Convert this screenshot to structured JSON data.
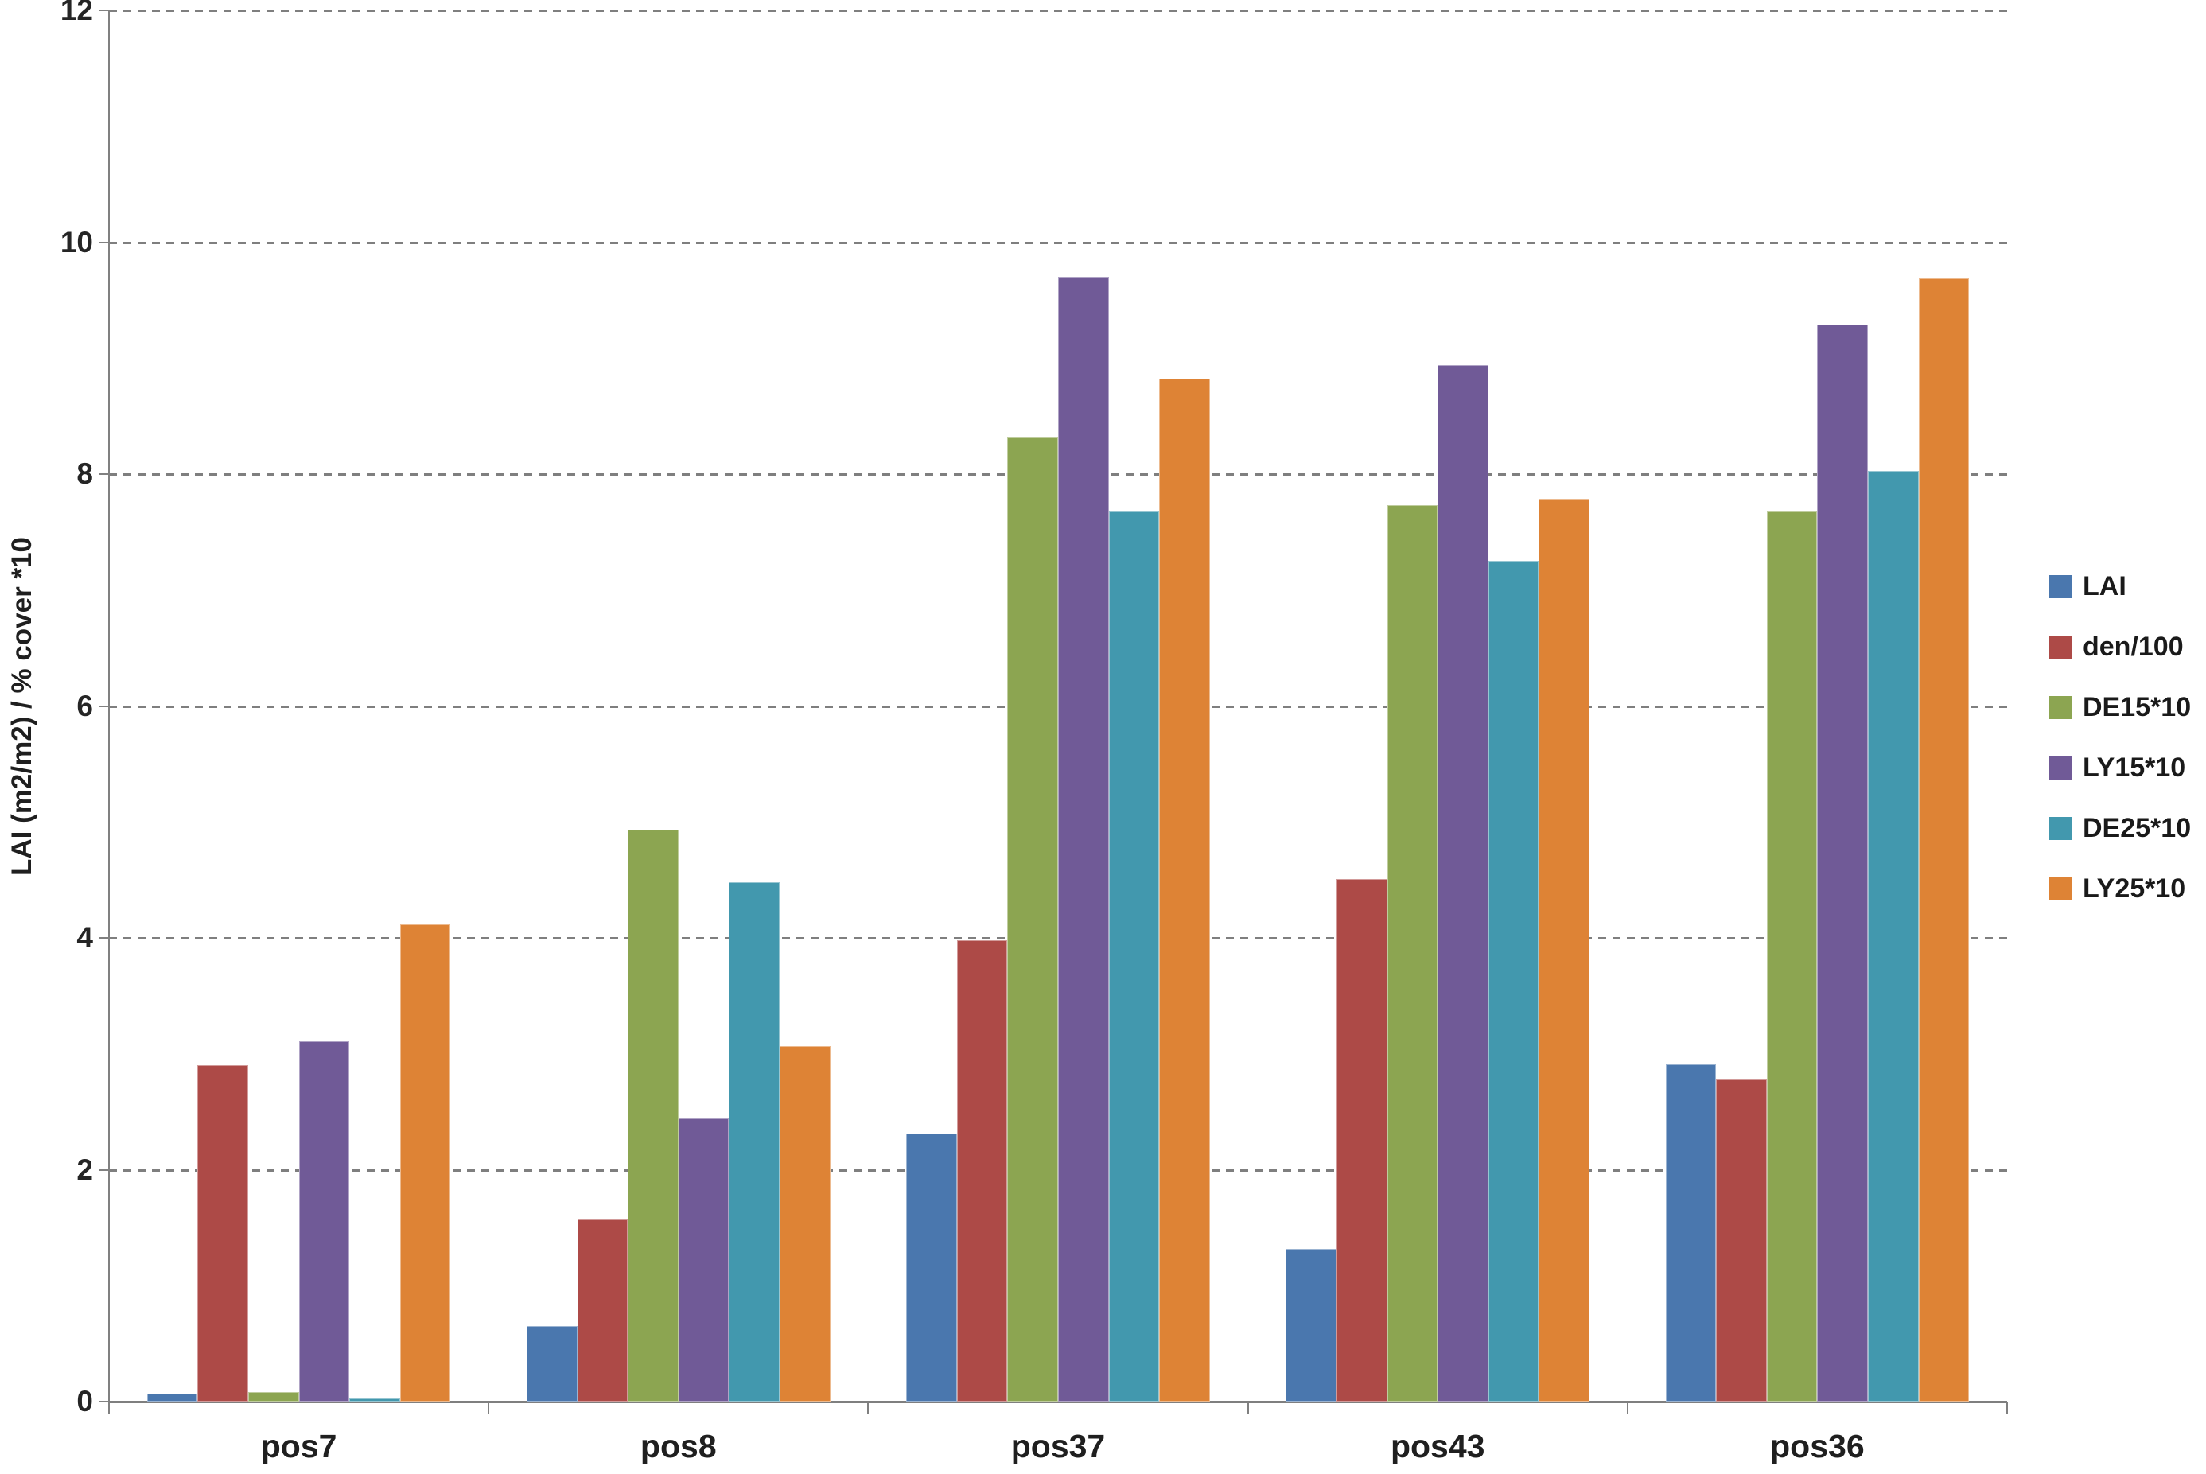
{
  "chart_data": {
    "type": "bar",
    "title": "",
    "xlabel": "",
    "ylabel": "LAI (m2/m2) / % cover *10",
    "categories": [
      "pos7",
      "pos8",
      "pos37",
      "pos43",
      "pos36"
    ],
    "series": [
      {
        "name": "LAI",
        "color": "#4A77AE",
        "values": [
          0.07,
          0.65,
          2.31,
          1.32,
          2.91
        ]
      },
      {
        "name": "den/100",
        "color": "#AD4A47",
        "values": [
          2.9,
          1.57,
          3.98,
          4.51,
          2.78
        ]
      },
      {
        "name": "DE15*10",
        "color": "#8CA551",
        "values": [
          0.08,
          4.93,
          8.32,
          7.73,
          7.68
        ]
      },
      {
        "name": "LY15*10",
        "color": "#705A97",
        "values": [
          3.11,
          2.44,
          9.7,
          8.94,
          9.29
        ]
      },
      {
        "name": "DE25*10",
        "color": "#4298AE",
        "values": [
          0.03,
          4.48,
          7.68,
          7.25,
          8.03
        ]
      },
      {
        "name": "LY25*10",
        "color": "#DE8335",
        "values": [
          4.12,
          3.07,
          8.82,
          7.79,
          9.69
        ]
      }
    ],
    "y_ticks": [
      0,
      2,
      4,
      6,
      8,
      10,
      12
    ],
    "ylim": [
      0,
      12
    ],
    "grid": "horizontal-dashed",
    "legend_position": "right",
    "axis_color": "#808080",
    "gridline_color": "#7f7f7f"
  }
}
